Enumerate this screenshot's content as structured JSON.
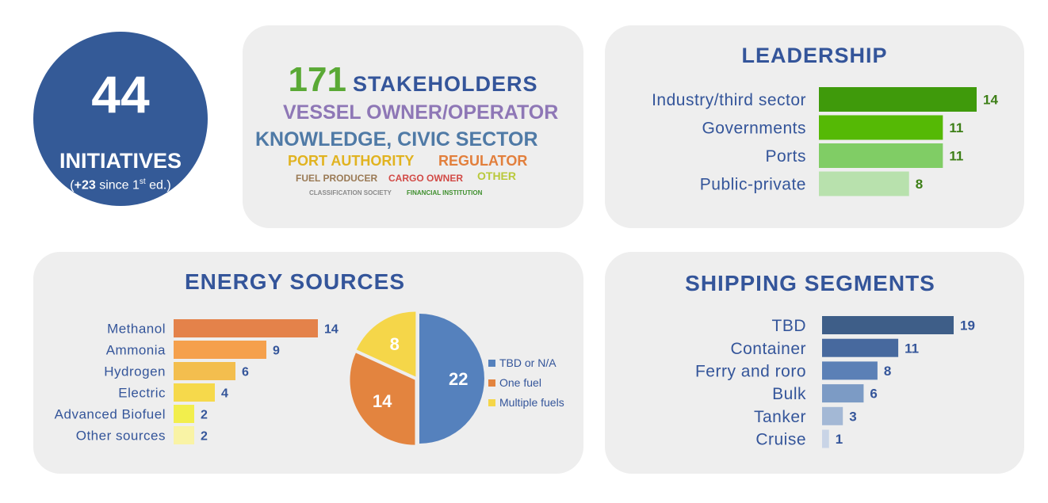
{
  "initiatives": {
    "count": "44",
    "label": "INITIATIVES",
    "note_prefix": "(",
    "note_bold": "+23",
    "note_mid": " since 1",
    "note_sup": "st",
    "note_suffix": " ed.)"
  },
  "stakeholders": {
    "count": "171",
    "title": "STAKEHOLDERS",
    "word_cloud": [
      "VESSEL OWNER/OPERATOR",
      "KNOWLEDGE, CIVIC SECTOR",
      "PORT AUTHORITY",
      "REGULATOR",
      "FUEL PRODUCER",
      "CARGO OWNER",
      "OTHER",
      "CLASSIFICATION SOCIETY",
      "FINANCIAL INSTITUTION"
    ]
  },
  "colors": {
    "title_blue": "#34559a",
    "card_bg": "#eeeeee",
    "circle_blue": "#345a97",
    "stake_green": "#5aa935"
  },
  "chart_data": [
    {
      "id": "leadership",
      "type": "bar",
      "orientation": "horizontal",
      "title": "LEADERSHIP",
      "categories": [
        "Industry/third sector",
        "Governments",
        "Ports",
        "Public-private"
      ],
      "values": [
        14,
        11,
        11,
        8
      ],
      "colors": [
        "#3f9a0b",
        "#55b905",
        "#80cd65",
        "#b8e1ad"
      ],
      "label_color": "#3d7f17"
    },
    {
      "id": "energy_sources",
      "type": "bar",
      "orientation": "horizontal",
      "title": "ENERGY SOURCES",
      "categories": [
        "Methanol",
        "Ammonia",
        "Hydrogen",
        "Electric",
        "Advanced Biofuel",
        "Other sources"
      ],
      "values": [
        14,
        9,
        6,
        4,
        2,
        2
      ],
      "colors": [
        "#e4824a",
        "#f5a04c",
        "#f3be4e",
        "#f6d94b",
        "#f2ee4c",
        "#f9f3a5"
      ]
    },
    {
      "id": "energy_fuel_mix",
      "type": "pie",
      "categories": [
        "TBD or N/A",
        "One fuel",
        "Multiple fuels"
      ],
      "values": [
        22,
        14,
        8
      ],
      "colors": [
        "#5581bd",
        "#e3843f",
        "#f5d649"
      ],
      "legend": "right"
    },
    {
      "id": "shipping_segments",
      "type": "bar",
      "orientation": "horizontal",
      "title": "SHIPPING SEGMENTS",
      "categories": [
        "TBD",
        "Container",
        "Ferry and roro",
        "Bulk",
        "Tanker",
        "Cruise"
      ],
      "values": [
        19,
        11,
        8,
        6,
        3,
        1
      ],
      "colors": [
        "#3e5e88",
        "#47699e",
        "#5b80b6",
        "#7c9bc5",
        "#a3b8d5",
        "#c9d4e6"
      ]
    }
  ]
}
